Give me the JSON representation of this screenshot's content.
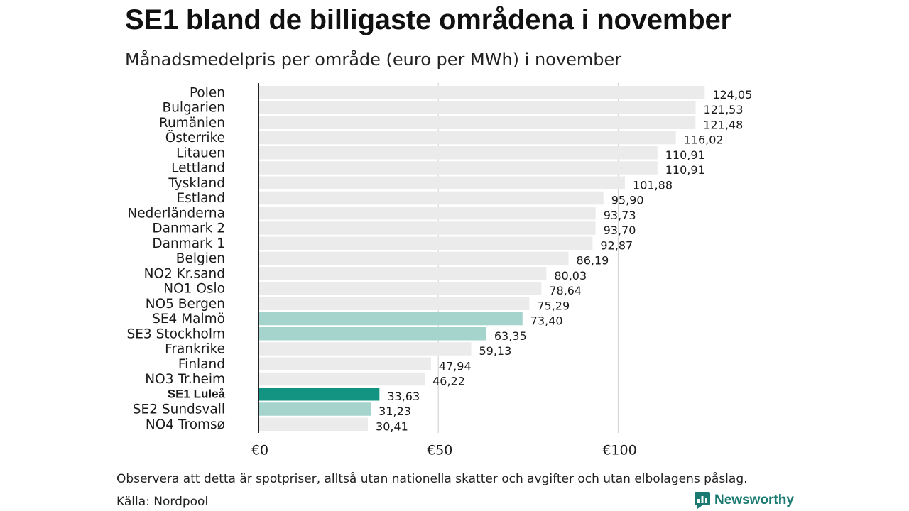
{
  "title": "SE1 bland de billigaste områdena i november",
  "subtitle": "Månadsmedelpris per område (euro per MWh) i november",
  "footnote": "Observera att detta är spotpriser, alltså utan nationella skatter och avgifter och utan elbolagens påslag.",
  "source": "Källa: Nordpool",
  "brand": {
    "name": "Newsworthy",
    "icon": "newsworthy-logo-icon"
  },
  "colors": {
    "default_bar": "#ebebeb",
    "se_bar": "#a5d4cc",
    "highlight_bar": "#139483",
    "gridline": "#d6d6d6",
    "axis": "#222222",
    "brand": "#1a7a72"
  },
  "chart_data": {
    "type": "bar",
    "orientation": "horizontal",
    "title": "SE1 bland de billigaste områdena i november",
    "subtitle": "Månadsmedelpris per område (euro per MWh) i november",
    "xlabel": "",
    "ylabel": "",
    "xlim": [
      0,
      124.05
    ],
    "xticks": [
      0,
      50,
      100
    ],
    "xtick_labels": [
      "€0",
      "€50",
      "€100"
    ],
    "grid": true,
    "categories": [
      "Polen",
      "Bulgarien",
      "Rumänien",
      "Österrike",
      "Litauen",
      "Lettland",
      "Tyskland",
      "Estland",
      "Nederländerna",
      "Danmark 2",
      "Danmark 1",
      "Belgien",
      "NO2 Kr.sand",
      "NO1 Oslo",
      "NO5 Bergen",
      "SE4 Malmö",
      "SE3 Stockholm",
      "Frankrike",
      "Finland",
      "NO3 Tr.heim",
      "SE1 Luleå",
      "SE2 Sundsvall",
      "NO4 Tromsø"
    ],
    "values": [
      124.05,
      121.53,
      121.48,
      116.02,
      110.91,
      110.91,
      101.88,
      95.9,
      93.73,
      93.7,
      92.87,
      86.19,
      80.03,
      78.64,
      75.29,
      73.4,
      63.35,
      59.13,
      47.94,
      46.22,
      33.63,
      31.23,
      30.41
    ],
    "value_labels": [
      "124,05",
      "121,53",
      "121,48",
      "116,02",
      "110,91",
      "110,91",
      "101,88",
      "95,90",
      "93,73",
      "93,70",
      "92,87",
      "86,19",
      "80,03",
      "78,64",
      "75,29",
      "73,40",
      "63,35",
      "59,13",
      "47,94",
      "46,22",
      "33,63",
      "31,23",
      "30,41"
    ],
    "bar_groups": [
      "other",
      "other",
      "other",
      "other",
      "other",
      "other",
      "other",
      "other",
      "other",
      "other",
      "other",
      "other",
      "other",
      "other",
      "other",
      "se",
      "se",
      "other",
      "other",
      "other",
      "highlight",
      "se",
      "other"
    ]
  }
}
